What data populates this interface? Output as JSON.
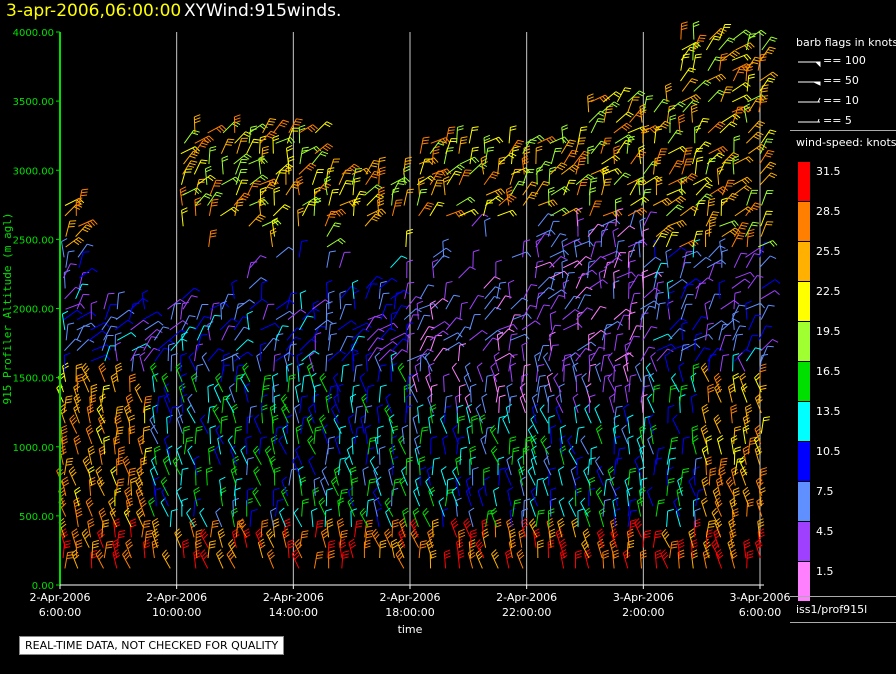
{
  "header": {
    "date_time": "3-apr-2006,06:00:00",
    "product": "XYWind:915winds."
  },
  "notice": "REAL-TIME DATA, NOT CHECKED FOR QUALITY",
  "legend": {
    "flags_title": "barb flags in knots",
    "flags": [
      "== 100",
      "== 50",
      "== 10",
      "== 5"
    ],
    "speed_title": "wind-speed: knots",
    "speeds": [
      {
        "label": "31.5",
        "color": "#ff0000"
      },
      {
        "label": "28.5",
        "color": "#ff8000"
      },
      {
        "label": "25.5",
        "color": "#ffb000"
      },
      {
        "label": "22.5",
        "color": "#ffff00"
      },
      {
        "label": "19.5",
        "color": "#a0ff30"
      },
      {
        "label": "16.5",
        "color": "#00e000"
      },
      {
        "label": "13.5",
        "color": "#00ffff"
      },
      {
        "label": "10.5",
        "color": "#0000ff"
      },
      {
        "label": "7.5",
        "color": "#6090ff"
      },
      {
        "label": "4.5",
        "color": "#a040ff"
      },
      {
        "label": "1.5",
        "color": "#ff80ff"
      }
    ],
    "station": "iss1/prof915l"
  },
  "chart_data": {
    "type": "scatter",
    "title": "3-apr-2006,06:00:00  XYWind:915winds.",
    "xlabel": "time",
    "ylabel": "915 Profiler Altitude (m agl)",
    "ylim": [
      0,
      4000
    ],
    "yticks": [
      "0.00",
      "500.00",
      "1000.00",
      "1500.00",
      "2000.00",
      "2500.00",
      "3000.00",
      "3500.00",
      "4000.00"
    ],
    "xticks": [
      [
        "2-Apr-2006",
        "6:00:00"
      ],
      [
        "2-Apr-2006",
        "10:00:00"
      ],
      [
        "2-Apr-2006",
        "14:00:00"
      ],
      [
        "2-Apr-2006",
        "18:00:00"
      ],
      [
        "2-Apr-2006",
        "22:00:00"
      ],
      [
        "3-Apr-2006",
        "2:00:00"
      ],
      [
        "3-Apr-2006",
        "6:00:00"
      ]
    ],
    "grid": true,
    "series": [
      {
        "name": "wind barbs",
        "x_hours": [
          0,
          4,
          8,
          12,
          16,
          20,
          24
        ],
        "note_speed_range_knots": [
          1.5,
          31.5
        ]
      }
    ],
    "colors": {
      "axis": "#00e000",
      "grid": "#c8c8c8"
    }
  }
}
